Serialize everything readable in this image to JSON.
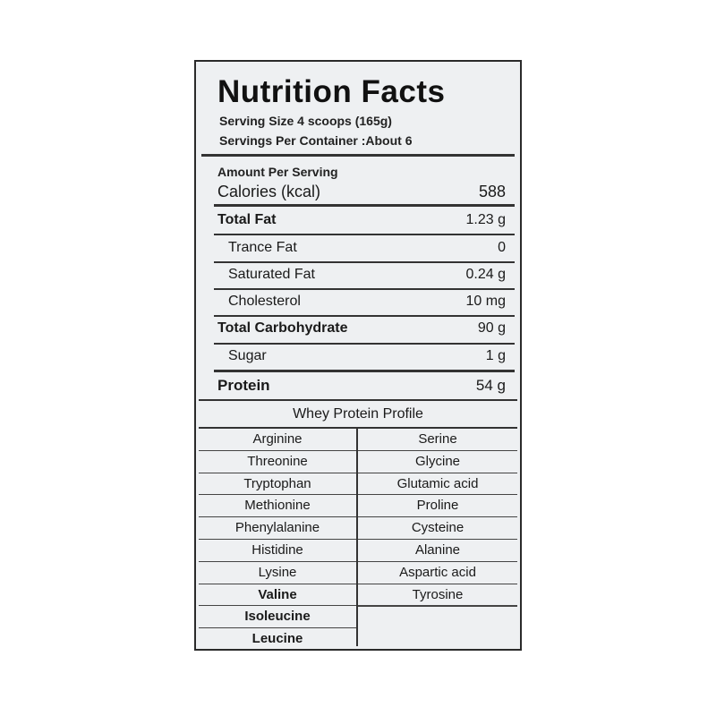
{
  "title": "Nutrition Facts",
  "serving_size": "Serving Size  4 scoops (165g)",
  "servings_per_container": "Servings Per Container :About 6",
  "amount_per_serving": "Amount Per Serving",
  "calories": {
    "label": "Calories (kcal)",
    "value": "588"
  },
  "nutrients": [
    {
      "label": "Total Fat",
      "value": "1.23 g",
      "bold": true
    },
    {
      "label": "Trance Fat",
      "value": "0",
      "bold": false
    },
    {
      "label": "Saturated Fat",
      "value": "0.24 g",
      "bold": false
    },
    {
      "label": "Cholesterol",
      "value": "10 mg",
      "bold": false
    },
    {
      "label": "Total Carbohydrate",
      "value": "90  g",
      "bold": true
    },
    {
      "label": "Sugar",
      "value": "1 g",
      "bold": false
    },
    {
      "label": "Protein",
      "value": "54 g",
      "bold": true
    }
  ],
  "profile_title": "Whey Protein Profile",
  "amino_left": [
    "Arginine",
    "Threonine",
    "Tryptophan",
    "Methionine",
    "Phenylalanine",
    "Histidine",
    "Lysine",
    "Valine",
    "Isoleucine",
    "Leucine"
  ],
  "amino_right": [
    "Serine",
    "Glycine",
    "Glutamic acid",
    "Proline",
    "Cysteine",
    "Alanine",
    "Aspartic acid",
    "Tyrosine"
  ]
}
